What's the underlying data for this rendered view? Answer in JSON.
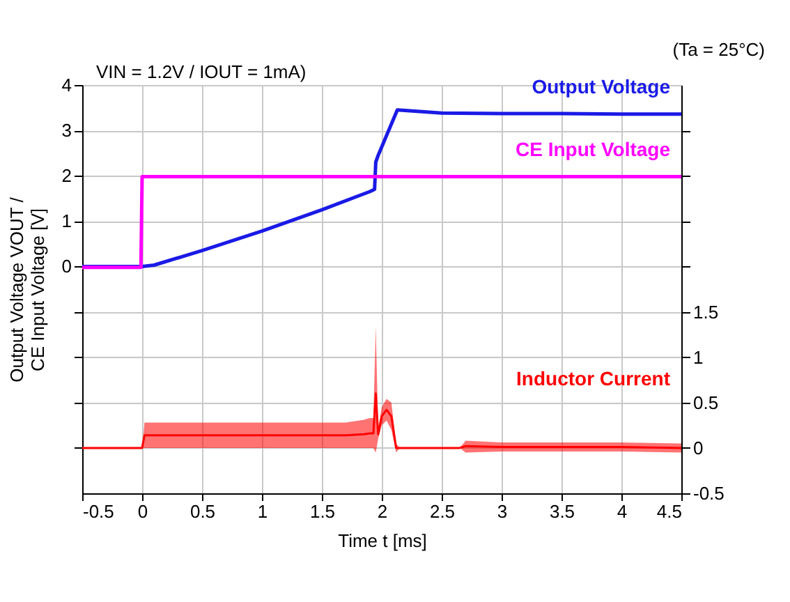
{
  "chart_data": {
    "type": "line",
    "xlabel": "Time t [ms]",
    "ylabel": "Output Voltage  VOUT /\nCE Input Voltage [V]",
    "annotations": [
      "VIN = 1.2V / IOUT = 1mA)",
      "(Ta = 25°C)"
    ],
    "xlim": [
      -0.5,
      4.5
    ],
    "xticks": [
      -0.5,
      0,
      0.5,
      1,
      1.5,
      2,
      2.5,
      3,
      3.5,
      4,
      4.5
    ],
    "ylim": [
      -5,
      4
    ],
    "yticks": [
      {
        "value": -4,
        "label": null
      },
      {
        "value": -3,
        "label": null
      },
      {
        "value": -2,
        "label": null
      },
      {
        "value": -1,
        "label": null
      },
      0,
      1,
      2,
      3,
      4
    ],
    "y2lim": [
      -0.5,
      4
    ],
    "y2ticks": [
      -0.5,
      0,
      0.5,
      1,
      1.5,
      {
        "value": 2,
        "label": null
      },
      {
        "value": 2.5,
        "label": null
      },
      {
        "value": 3,
        "label": null
      },
      {
        "value": 3.5,
        "label": null
      }
    ],
    "grid": true,
    "legend": false,
    "marker": "none",
    "line_style": "solid",
    "series": [
      {
        "name": "Output Voltage",
        "color": "#1a1ae6",
        "x": [
          -0.5,
          0,
          0.1,
          0.5,
          1.0,
          1.5,
          1.9,
          1.94,
          1.95,
          1.97,
          2.13,
          2.5,
          3.0,
          3.5,
          4.0,
          4.5
        ],
        "values": [
          0,
          0,
          0.03,
          0.35,
          0.78,
          1.25,
          1.65,
          1.7,
          2.3,
          2.45,
          3.45,
          3.38,
          3.37,
          3.37,
          3.36,
          3.36
        ]
      },
      {
        "name": "CE Input Voltage",
        "color": "#ff00ff",
        "x": [
          -0.5,
          -0.01,
          0,
          0.5,
          1.0,
          2.0,
          3.0,
          4.0,
          4.5
        ],
        "values": [
          -0.02,
          -0.02,
          1.98,
          1.98,
          1.98,
          1.98,
          1.98,
          1.98,
          1.98
        ]
      },
      {
        "name": "Inductor Current",
        "color": "#ff0000",
        "axis": "y2",
        "x": [
          -0.5,
          0,
          0.02,
          1.0,
          1.7,
          1.85,
          1.9,
          1.93,
          1.95,
          1.97,
          2.0,
          2.04,
          2.08,
          2.12,
          2.15,
          2.5,
          2.65,
          2.7,
          3.0,
          3.5,
          4.0,
          4.5
        ],
        "values": [
          0,
          0,
          0.14,
          0.14,
          0.14,
          0.15,
          0.16,
          0.16,
          0.6,
          0.15,
          0.35,
          0.42,
          0.35,
          0,
          0,
          0,
          0,
          0.02,
          0.01,
          0.01,
          0.01,
          0
        ],
        "lower": [
          0,
          0,
          0,
          0,
          0,
          0,
          0,
          0,
          -0.05,
          0.1,
          0.25,
          0.3,
          0.2,
          -0.05,
          0,
          0,
          0,
          -0.05,
          -0.04,
          -0.04,
          -0.04,
          -0.05
        ],
        "upper": [
          0,
          0,
          0.28,
          0.28,
          0.28,
          0.31,
          0.33,
          0.33,
          1.34,
          0.2,
          0.45,
          0.54,
          0.5,
          0.05,
          0,
          0,
          0,
          0.08,
          0.06,
          0.06,
          0.06,
          0.05
        ]
      }
    ]
  }
}
